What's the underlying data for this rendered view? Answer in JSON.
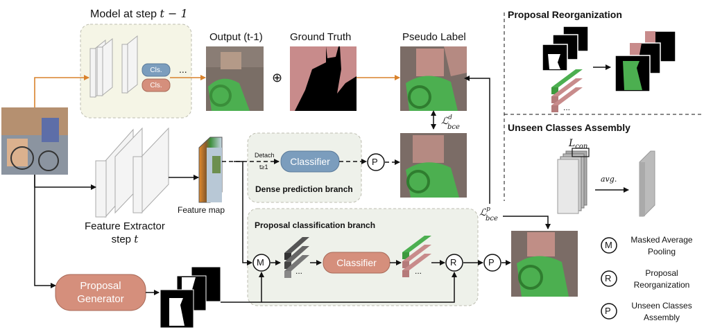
{
  "model_prev": {
    "title_prefix": "Model at step ",
    "title_var": "t − 1",
    "cls_top": "Cls.",
    "cls_bottom": "Cls.",
    "ellipsis": "..."
  },
  "images": {
    "output_label": "Output (t-1)",
    "gt_label": "Ground Truth",
    "pseudo_label": "Pseudo Label",
    "oplus": "⊕"
  },
  "feature_extractor": {
    "line1": "Feature Extractor",
    "line2_prefix": "step ",
    "line2_var": "t",
    "feature_map": "Feature map"
  },
  "dense_branch": {
    "detach": "Detach",
    "t_cond": "t≥1",
    "classifier": "Classifier",
    "title": "Dense prediction branch"
  },
  "proposal_branch": {
    "title": "Proposal classification branch",
    "classifier": "Classifier",
    "ellipsis1": "...",
    "ellipsis2": "..."
  },
  "proposal_generator": {
    "line1": "Proposal",
    "line2": "Generator"
  },
  "losses": {
    "dense_main": "ℒ",
    "dense_sub": "bce",
    "dense_sup": "d",
    "prop_main": "ℒ",
    "prop_sub": "bce",
    "prop_sup": "p"
  },
  "ops": {
    "M": "M",
    "R": "R",
    "P": "P"
  },
  "reorg": {
    "title": "Proposal Reorganization",
    "ellipsis": "..."
  },
  "assembly": {
    "title": "Unseen Classes Assembly",
    "lcon_main": "L",
    "lcon_sub": "con",
    "avg": "avg."
  },
  "legend": [
    {
      "symbol": "M",
      "line1": "Masked Average",
      "line2": "Pooling"
    },
    {
      "symbol": "R",
      "line1": "Proposal",
      "line2": "Reorganization"
    },
    {
      "symbol": "P",
      "line1": "Unseen Classes",
      "line2": "Assembly"
    }
  ],
  "colors": {
    "orange_arrow": "#d9822b",
    "blue_box": "#7b9dbd",
    "salmon_box": "#d58f7c",
    "green_mask": "#4caf50",
    "pink_mask": "#c88b8b",
    "branch_fill": "#eef1ea",
    "model_fill": "#f5f5e6"
  }
}
